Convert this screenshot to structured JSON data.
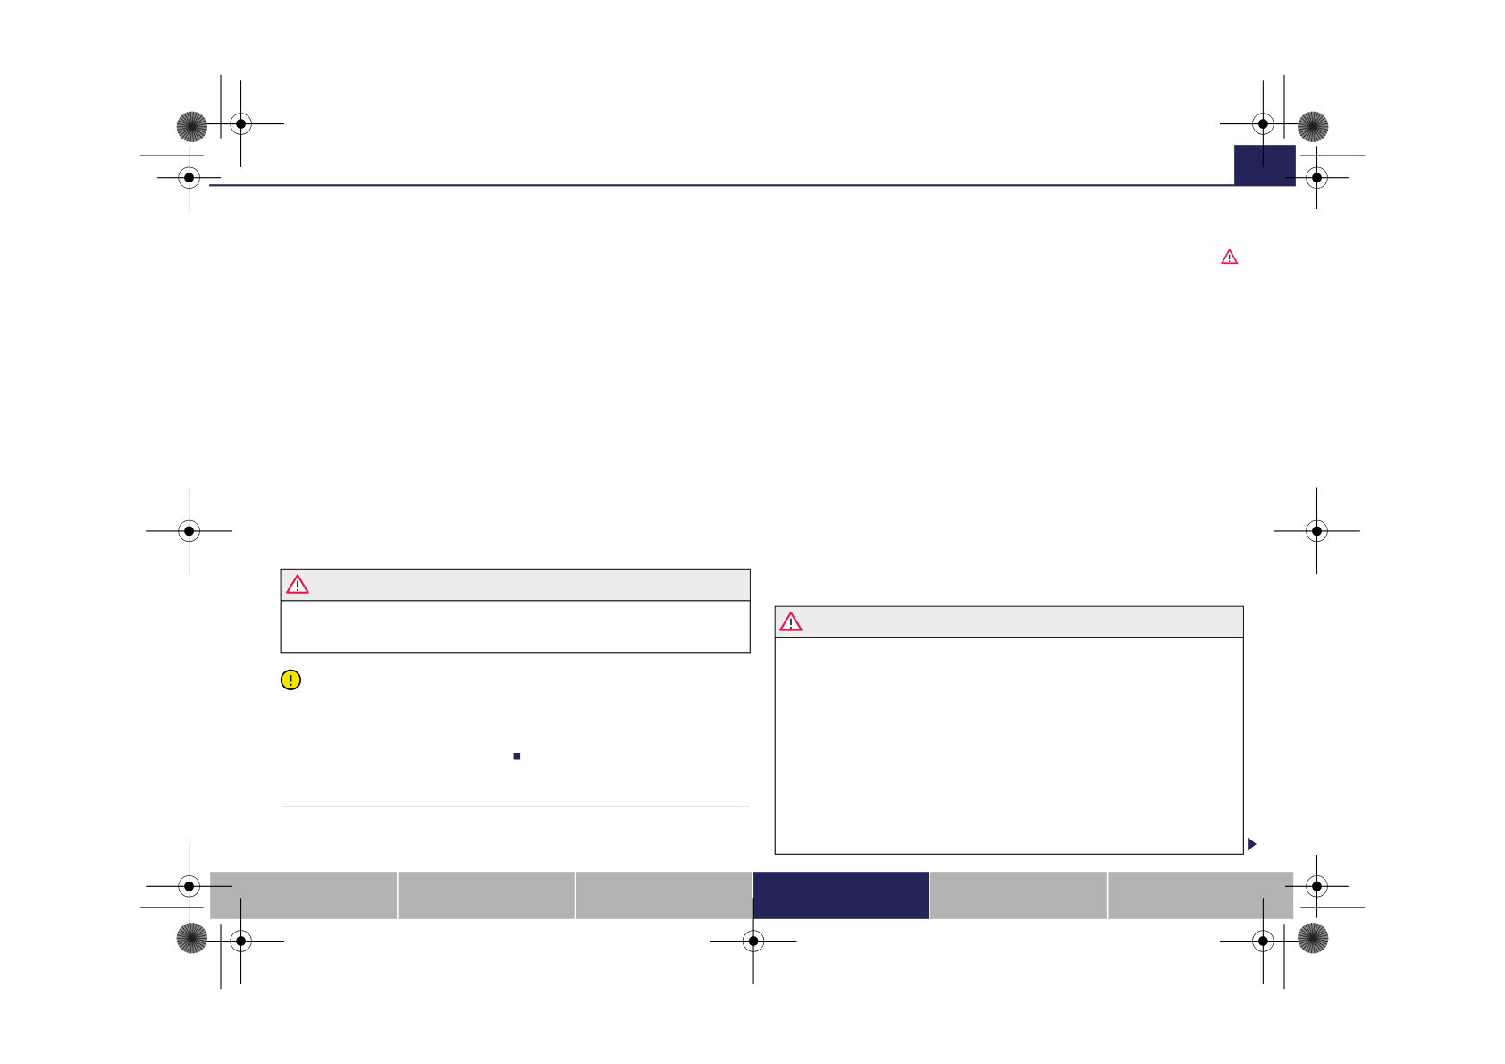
{
  "colors": {
    "brand_navy": "#232457",
    "nav_grey": "#b3b3b3",
    "warning_red": "#e8174a",
    "caution_yellow": "#f2e600",
    "box_header_grey": "#ececec"
  },
  "navigation": {
    "tab_count": 6,
    "active_tab_index": 3
  },
  "icons": {
    "warning": "warning-triangle-icon",
    "caution": "caution-circle-icon",
    "end_marker": "end-of-section-square-icon",
    "continue": "continue-arrow-icon"
  }
}
